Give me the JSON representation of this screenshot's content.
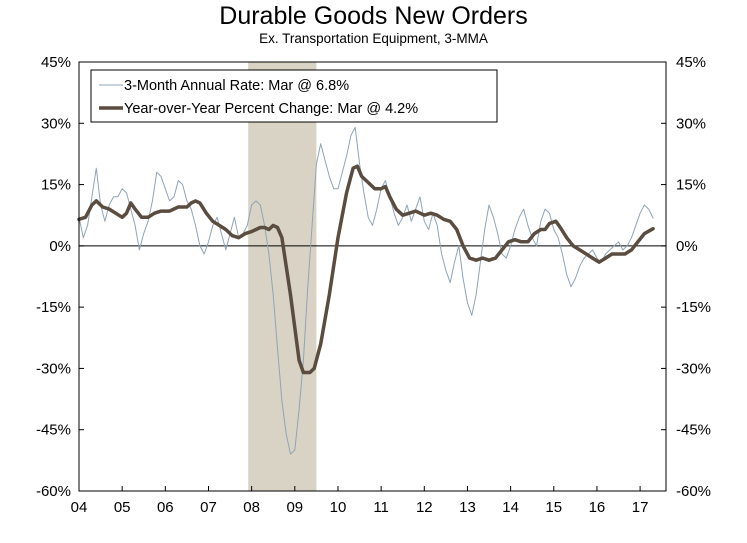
{
  "chart_data": {
    "type": "line",
    "title": "Durable Goods New Orders",
    "subtitle": "Ex. Transportation Equipment, 3-MMA",
    "xlim": [
      2004,
      2017.6
    ],
    "ylim": [
      -60,
      45
    ],
    "y_ticks": [
      45,
      30,
      15,
      0,
      -15,
      -30,
      -45,
      -60
    ],
    "y_tick_labels": [
      "45%",
      "30%",
      "15%",
      "0%",
      "-15%",
      "-30%",
      "-45%",
      "-60%"
    ],
    "x_ticks": [
      2004,
      2005,
      2006,
      2007,
      2008,
      2009,
      2010,
      2011,
      2012,
      2013,
      2014,
      2015,
      2016,
      2017
    ],
    "x_tick_labels": [
      "04",
      "05",
      "06",
      "07",
      "08",
      "09",
      "10",
      "11",
      "12",
      "13",
      "14",
      "15",
      "16",
      "17"
    ],
    "recession": [
      2007.92,
      2009.5
    ],
    "legend_position": "top-left",
    "colors": {
      "annual_rate": "#8fa4b8",
      "yoy": "#5a4c3e",
      "recession": "#d8d3c5"
    },
    "series": [
      {
        "name": "3-Month Annual Rate: Mar @ 6.8%",
        "style": "thin",
        "points": [
          [
            2004.0,
            7
          ],
          [
            2004.1,
            2
          ],
          [
            2004.2,
            5
          ],
          [
            2004.3,
            12
          ],
          [
            2004.4,
            19
          ],
          [
            2004.5,
            10
          ],
          [
            2004.6,
            6
          ],
          [
            2004.7,
            10
          ],
          [
            2004.8,
            12
          ],
          [
            2004.9,
            12
          ],
          [
            2005.0,
            14
          ],
          [
            2005.1,
            13
          ],
          [
            2005.2,
            9
          ],
          [
            2005.3,
            5
          ],
          [
            2005.4,
            -1
          ],
          [
            2005.5,
            3
          ],
          [
            2005.6,
            6
          ],
          [
            2005.7,
            11
          ],
          [
            2005.8,
            18
          ],
          [
            2005.9,
            17
          ],
          [
            2006.0,
            14
          ],
          [
            2006.1,
            11
          ],
          [
            2006.2,
            12
          ],
          [
            2006.3,
            16
          ],
          [
            2006.4,
            15
          ],
          [
            2006.5,
            11
          ],
          [
            2006.6,
            9
          ],
          [
            2006.7,
            5
          ],
          [
            2006.8,
            0
          ],
          [
            2006.9,
            -2
          ],
          [
            2007.0,
            1
          ],
          [
            2007.1,
            5
          ],
          [
            2007.2,
            7
          ],
          [
            2007.3,
            3
          ],
          [
            2007.4,
            -1
          ],
          [
            2007.5,
            3
          ],
          [
            2007.6,
            7
          ],
          [
            2007.7,
            2
          ],
          [
            2007.8,
            3
          ],
          [
            2007.9,
            5
          ],
          [
            2008.0,
            10
          ],
          [
            2008.1,
            11
          ],
          [
            2008.2,
            10
          ],
          [
            2008.3,
            5
          ],
          [
            2008.4,
            -2
          ],
          [
            2008.5,
            -12
          ],
          [
            2008.6,
            -25
          ],
          [
            2008.7,
            -38
          ],
          [
            2008.8,
            -46
          ],
          [
            2008.9,
            -51
          ],
          [
            2009.0,
            -50
          ],
          [
            2009.1,
            -40
          ],
          [
            2009.2,
            -28
          ],
          [
            2009.3,
            -10
          ],
          [
            2009.4,
            5
          ],
          [
            2009.5,
            20
          ],
          [
            2009.6,
            25
          ],
          [
            2009.7,
            21
          ],
          [
            2009.8,
            17
          ],
          [
            2009.9,
            14
          ],
          [
            2010.0,
            14
          ],
          [
            2010.1,
            18
          ],
          [
            2010.2,
            22
          ],
          [
            2010.3,
            27
          ],
          [
            2010.4,
            29
          ],
          [
            2010.5,
            20
          ],
          [
            2010.6,
            13
          ],
          [
            2010.7,
            7
          ],
          [
            2010.8,
            5
          ],
          [
            2010.9,
            9
          ],
          [
            2011.0,
            14
          ],
          [
            2011.1,
            16
          ],
          [
            2011.2,
            12
          ],
          [
            2011.3,
            8
          ],
          [
            2011.4,
            5
          ],
          [
            2011.5,
            7
          ],
          [
            2011.6,
            10
          ],
          [
            2011.7,
            6
          ],
          [
            2011.8,
            9
          ],
          [
            2011.9,
            12
          ],
          [
            2012.0,
            6
          ],
          [
            2012.1,
            4
          ],
          [
            2012.2,
            8
          ],
          [
            2012.3,
            5
          ],
          [
            2012.4,
            -2
          ],
          [
            2012.5,
            -6
          ],
          [
            2012.6,
            -9
          ],
          [
            2012.7,
            -4
          ],
          [
            2012.8,
            0
          ],
          [
            2012.9,
            -8
          ],
          [
            2013.0,
            -14
          ],
          [
            2013.1,
            -17
          ],
          [
            2013.2,
            -12
          ],
          [
            2013.3,
            -4
          ],
          [
            2013.4,
            4
          ],
          [
            2013.5,
            10
          ],
          [
            2013.6,
            7
          ],
          [
            2013.7,
            3
          ],
          [
            2013.8,
            -2
          ],
          [
            2013.9,
            -3
          ],
          [
            2014.0,
            0
          ],
          [
            2014.1,
            4
          ],
          [
            2014.2,
            7
          ],
          [
            2014.3,
            9
          ],
          [
            2014.4,
            5
          ],
          [
            2014.5,
            2
          ],
          [
            2014.6,
            0
          ],
          [
            2014.7,
            6
          ],
          [
            2014.8,
            9
          ],
          [
            2014.9,
            8
          ],
          [
            2015.0,
            4
          ],
          [
            2015.1,
            2
          ],
          [
            2015.2,
            -2
          ],
          [
            2015.3,
            -7
          ],
          [
            2015.4,
            -10
          ],
          [
            2015.5,
            -8
          ],
          [
            2015.6,
            -5
          ],
          [
            2015.7,
            -3
          ],
          [
            2015.8,
            -2
          ],
          [
            2015.9,
            -1
          ],
          [
            2016.0,
            -3
          ],
          [
            2016.1,
            -4
          ],
          [
            2016.2,
            -2
          ],
          [
            2016.3,
            -1
          ],
          [
            2016.4,
            0
          ],
          [
            2016.5,
            1
          ],
          [
            2016.6,
            -1
          ],
          [
            2016.7,
            0
          ],
          [
            2016.8,
            2
          ],
          [
            2016.9,
            5
          ],
          [
            2017.0,
            8
          ],
          [
            2017.1,
            10
          ],
          [
            2017.2,
            9
          ],
          [
            2017.3,
            6.8
          ]
        ]
      },
      {
        "name": "Year-over-Year Percent Change: Mar @ 4.2%",
        "style": "thick",
        "points": [
          [
            2004.0,
            6.5
          ],
          [
            2004.15,
            7
          ],
          [
            2004.3,
            10
          ],
          [
            2004.4,
            11
          ],
          [
            2004.55,
            9.5
          ],
          [
            2004.7,
            9
          ],
          [
            2004.85,
            8
          ],
          [
            2005.0,
            7
          ],
          [
            2005.1,
            8
          ],
          [
            2005.2,
            10.5
          ],
          [
            2005.3,
            9
          ],
          [
            2005.45,
            7
          ],
          [
            2005.6,
            7
          ],
          [
            2005.75,
            8
          ],
          [
            2005.9,
            8.5
          ],
          [
            2006.1,
            8.5
          ],
          [
            2006.3,
            9.5
          ],
          [
            2006.5,
            9.5
          ],
          [
            2006.6,
            10.5
          ],
          [
            2006.7,
            11
          ],
          [
            2006.8,
            10.5
          ],
          [
            2006.95,
            8
          ],
          [
            2007.1,
            6
          ],
          [
            2007.25,
            5
          ],
          [
            2007.4,
            4
          ],
          [
            2007.55,
            2.5
          ],
          [
            2007.7,
            2
          ],
          [
            2007.85,
            3
          ],
          [
            2008.0,
            3.5
          ],
          [
            2008.1,
            4
          ],
          [
            2008.2,
            4.5
          ],
          [
            2008.3,
            4.5
          ],
          [
            2008.4,
            4
          ],
          [
            2008.5,
            5
          ],
          [
            2008.6,
            4.5
          ],
          [
            2008.7,
            2
          ],
          [
            2008.8,
            -5
          ],
          [
            2008.9,
            -12
          ],
          [
            2009.0,
            -20
          ],
          [
            2009.1,
            -28
          ],
          [
            2009.2,
            -31
          ],
          [
            2009.35,
            -31
          ],
          [
            2009.45,
            -30
          ],
          [
            2009.6,
            -24
          ],
          [
            2009.8,
            -12
          ],
          [
            2010.0,
            2
          ],
          [
            2010.2,
            13
          ],
          [
            2010.35,
            19
          ],
          [
            2010.45,
            19.5
          ],
          [
            2010.55,
            17
          ],
          [
            2010.7,
            15.5
          ],
          [
            2010.85,
            14
          ],
          [
            2011.0,
            14
          ],
          [
            2011.1,
            14.5
          ],
          [
            2011.2,
            12
          ],
          [
            2011.35,
            9
          ],
          [
            2011.5,
            7.5
          ],
          [
            2011.65,
            8
          ],
          [
            2011.8,
            8.5
          ],
          [
            2012.0,
            7.5
          ],
          [
            2012.15,
            8
          ],
          [
            2012.3,
            7.5
          ],
          [
            2012.45,
            6.5
          ],
          [
            2012.6,
            6
          ],
          [
            2012.75,
            4
          ],
          [
            2012.9,
            0
          ],
          [
            2013.05,
            -3
          ],
          [
            2013.2,
            -3.5
          ],
          [
            2013.35,
            -3
          ],
          [
            2013.5,
            -3.5
          ],
          [
            2013.65,
            -3
          ],
          [
            2013.8,
            -1
          ],
          [
            2013.95,
            1
          ],
          [
            2014.1,
            1.5
          ],
          [
            2014.25,
            1
          ],
          [
            2014.4,
            1
          ],
          [
            2014.55,
            3
          ],
          [
            2014.7,
            4
          ],
          [
            2014.8,
            4
          ],
          [
            2014.9,
            5.5
          ],
          [
            2015.05,
            6
          ],
          [
            2015.15,
            4.5
          ],
          [
            2015.3,
            2
          ],
          [
            2015.45,
            0
          ],
          [
            2015.6,
            -1
          ],
          [
            2015.75,
            -2
          ],
          [
            2015.9,
            -3
          ],
          [
            2016.05,
            -4
          ],
          [
            2016.2,
            -3
          ],
          [
            2016.35,
            -2
          ],
          [
            2016.5,
            -2
          ],
          [
            2016.65,
            -2
          ],
          [
            2016.8,
            -1
          ],
          [
            2016.95,
            1
          ],
          [
            2017.1,
            3
          ],
          [
            2017.3,
            4.2
          ]
        ]
      }
    ]
  }
}
